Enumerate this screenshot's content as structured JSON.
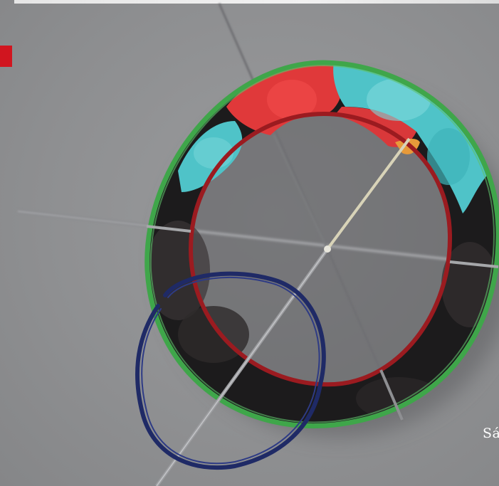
{
  "caption": {
    "text": "Sá"
  },
  "colors": {
    "background": "#8f9092",
    "top_strip": "#eeeeee",
    "marker": "#d1151f",
    "ring_outline": "#3fa64a",
    "ring_body": "#1c1b1c",
    "ring_inner_edge": "#9b1b20",
    "segment_red": "#e0393a",
    "segment_cyan": "#4fc3c8",
    "navy_loop": "#1f2a66"
  },
  "icons": {
    "marker": "red-square-marker"
  }
}
